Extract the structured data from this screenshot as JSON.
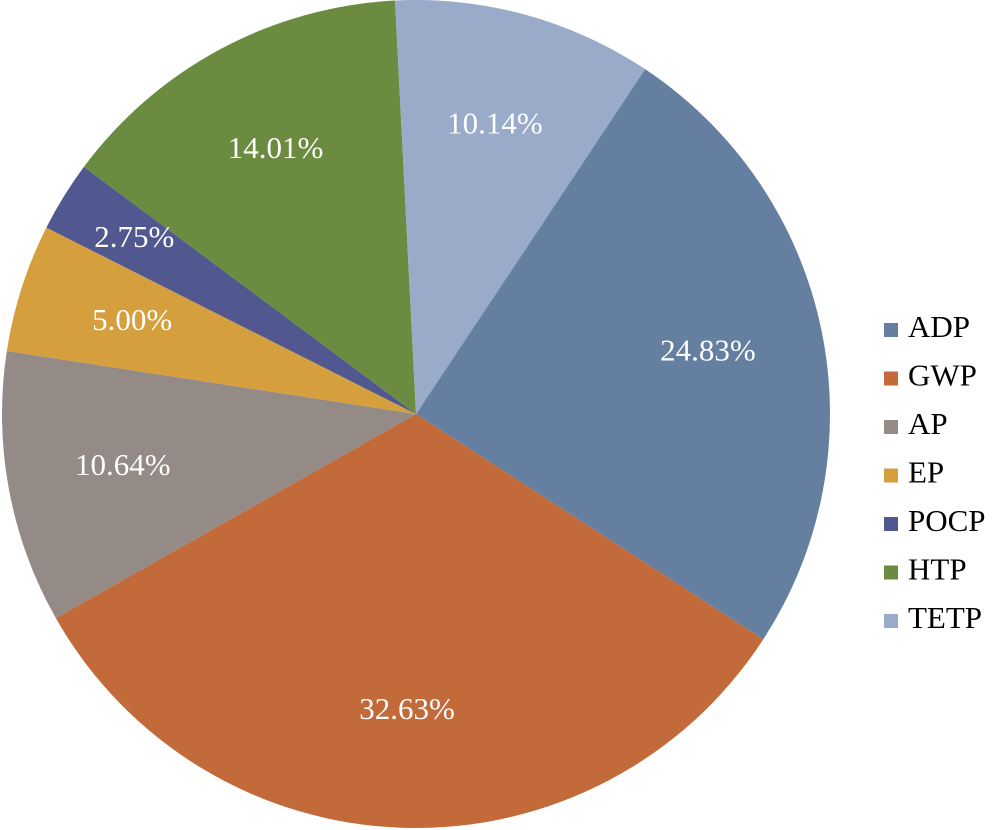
{
  "chart_data": {
    "type": "pie",
    "legend_position": "right",
    "start_angle_deg": 33.6,
    "direction": "clockwise",
    "slices": [
      {
        "label": "ADP",
        "value": 24.83,
        "display": "24.83%",
        "color": "#647f9f"
      },
      {
        "label": "GWP",
        "value": 32.63,
        "display": "32.63%",
        "color": "#c36a3a"
      },
      {
        "label": "AP",
        "value": 10.64,
        "display": "10.64%",
        "color": "#948a86"
      },
      {
        "label": "EP",
        "value": 5.0,
        "display": "5.00%",
        "color": "#d59f3d"
      },
      {
        "label": "POCP",
        "value": 2.75,
        "display": "2.75%",
        "color": "#50588f"
      },
      {
        "label": "HTP",
        "value": 14.01,
        "display": "14.01%",
        "color": "#6b8c40"
      },
      {
        "label": "TETP",
        "value": 10.14,
        "display": "10.14%",
        "color": "#99abc9"
      }
    ]
  }
}
